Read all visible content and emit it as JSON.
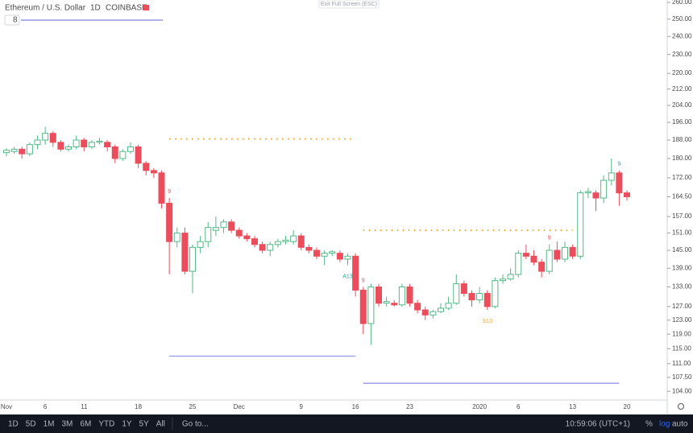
{
  "header": {
    "symbol": "Ethereum / U.S. Dollar",
    "interval": "1D",
    "exchange": "COINBASE",
    "counter": "8",
    "hint": "Exit Full Screen (ESC)"
  },
  "toolbar": {
    "ranges": [
      "1D",
      "5D",
      "1M",
      "3M",
      "6M",
      "YTD",
      "1Y",
      "5Y",
      "All"
    ],
    "goto": "Go to...",
    "clock": "10:59:06 (UTC+1)",
    "options": [
      "%",
      "log",
      "auto"
    ]
  },
  "chart_data": {
    "type": "candlestick",
    "log": true,
    "grid": false,
    "up_color": "#53b987",
    "down_color": "#eb4d5c",
    "categories": [
      "Nov",
      null,
      null,
      null,
      null,
      "6",
      null,
      null,
      null,
      null,
      "11",
      null,
      null,
      null,
      null,
      null,
      null,
      "18",
      null,
      null,
      null,
      null,
      null,
      null,
      "25",
      null,
      null,
      null,
      null,
      null,
      "Dec",
      null,
      null,
      null,
      null,
      null,
      null,
      null,
      "9",
      null,
      null,
      null,
      null,
      null,
      null,
      "16",
      null,
      null,
      null,
      null,
      null,
      null,
      "23",
      null,
      null,
      null,
      null,
      null,
      null,
      null,
      null,
      "2020",
      null,
      null,
      null,
      null,
      "6",
      null,
      null,
      null,
      null,
      null,
      null,
      "13",
      null,
      null,
      null,
      null,
      null,
      null,
      "20"
    ],
    "open": [
      182.5,
      183,
      184,
      182,
      186,
      188,
      191,
      187,
      184,
      185,
      188,
      185,
      187,
      187,
      185,
      180,
      183,
      185,
      178,
      175,
      174,
      162,
      148,
      151,
      138,
      146,
      148,
      152,
      153,
      155,
      152,
      150,
      149,
      147,
      145,
      147,
      148,
      148,
      150,
      146,
      145,
      143,
      144,
      144,
      142,
      143,
      132,
      122,
      133,
      128,
      128,
      127.5,
      133,
      128,
      126,
      124.5,
      125.5,
      126.5,
      128,
      134,
      131,
      129,
      131,
      127,
      135,
      135.5,
      137,
      144,
      143,
      141,
      138,
      145,
      142,
      146,
      143,
      166,
      166,
      164,
      171,
      174,
      166
    ],
    "high": [
      184.5,
      185,
      185,
      187,
      190,
      194,
      192,
      188,
      186,
      190,
      189,
      188,
      189,
      188,
      186,
      184,
      187,
      186,
      179,
      176,
      175,
      164,
      153,
      153,
      147,
      150,
      155,
      157,
      156,
      156,
      153,
      151,
      150,
      148,
      148,
      149,
      150,
      152,
      151,
      147,
      146,
      145,
      145,
      145,
      144,
      144,
      133,
      134,
      134,
      130,
      129,
      134,
      134,
      129,
      127,
      126,
      128,
      130,
      137,
      135,
      132,
      133,
      132,
      136,
      137,
      139,
      145,
      147,
      145,
      142,
      147,
      148,
      148,
      147,
      167,
      168,
      167,
      173,
      180,
      175,
      167
    ],
    "low": [
      181,
      182,
      180,
      181,
      184,
      186,
      185,
      183,
      183,
      184,
      183,
      184,
      186,
      183,
      178,
      179,
      182,
      176,
      173,
      172,
      160,
      137,
      146,
      137,
      131,
      144,
      146,
      150,
      151,
      151,
      149,
      148,
      146,
      144,
      143,
      146,
      147,
      147,
      145,
      144,
      142,
      140,
      143,
      141,
      140,
      130,
      119,
      116,
      127,
      127,
      127,
      127,
      127,
      125,
      123,
      123.5,
      125,
      126,
      127.5,
      130,
      127,
      128,
      126,
      126.5,
      134,
      135,
      136,
      142,
      140,
      136,
      137,
      141,
      141,
      142,
      142,
      164,
      159,
      162,
      169,
      161,
      163
    ],
    "close": [
      183.5,
      184,
      182,
      186,
      188,
      191,
      187,
      184,
      185,
      188,
      185,
      187,
      187.5,
      185,
      180,
      183,
      185,
      178,
      175,
      174,
      162,
      148,
      151,
      138,
      146,
      148,
      153,
      153,
      155,
      152,
      150,
      149,
      147,
      145,
      147,
      148,
      148.5,
      150,
      146,
      145,
      143,
      144,
      144.5,
      142,
      143,
      132,
      122,
      133,
      128,
      128.5,
      127.5,
      133,
      128,
      126,
      124.5,
      125.5,
      126.5,
      128,
      134,
      131,
      129,
      131,
      127,
      135,
      135.5,
      137,
      144,
      143,
      141,
      138,
      145,
      142,
      146,
      143,
      166,
      166.5,
      164,
      171,
      174,
      166,
      164.5
    ],
    "ylim": [
      101.9,
      261.5
    ],
    "yticks": [
      {
        "value": 260,
        "label": "260.00"
      },
      {
        "value": 250,
        "label": "250.00"
      },
      {
        "value": 240,
        "label": "240.00"
      },
      {
        "value": 230,
        "label": "230.00"
      },
      {
        "value": 220,
        "label": "220.00"
      },
      {
        "value": 212,
        "label": "212.00"
      },
      {
        "value": 204,
        "label": "204.00"
      },
      {
        "value": 196,
        "label": "196.00"
      },
      {
        "value": 188,
        "label": "188.00"
      },
      {
        "value": 180,
        "label": "180.00"
      },
      {
        "value": 172,
        "label": "172.00"
      },
      {
        "value": 164.5,
        "label": "164.50"
      },
      {
        "value": 157,
        "label": "157.00"
      },
      {
        "value": 151,
        "label": "151.00"
      },
      {
        "value": 145,
        "label": "145.00"
      },
      {
        "value": 139,
        "label": "139.00"
      },
      {
        "value": 133,
        "label": "133.00"
      },
      {
        "value": 127,
        "label": "127.00"
      },
      {
        "value": 123,
        "label": "123.00"
      },
      {
        "value": 119,
        "label": "119.00"
      },
      {
        "value": 115,
        "label": "115.00"
      },
      {
        "value": 111,
        "label": "111.00"
      },
      {
        "value": 107.5,
        "label": "107.50"
      },
      {
        "value": 104,
        "label": "104.00"
      }
    ],
    "levels": [
      {
        "value": 188.5,
        "color": "#f7a21b",
        "style": "dotted"
      },
      {
        "value": 152,
        "color": "#f7a21b",
        "style": "dotted"
      },
      {
        "value": 113,
        "color": "#9598e8",
        "style": "solid"
      },
      {
        "value": 106,
        "color": "#9598e8",
        "style": "solid"
      }
    ],
    "annotations": [
      "9",
      "A13",
      "9",
      "S13",
      "9",
      "9"
    ]
  }
}
